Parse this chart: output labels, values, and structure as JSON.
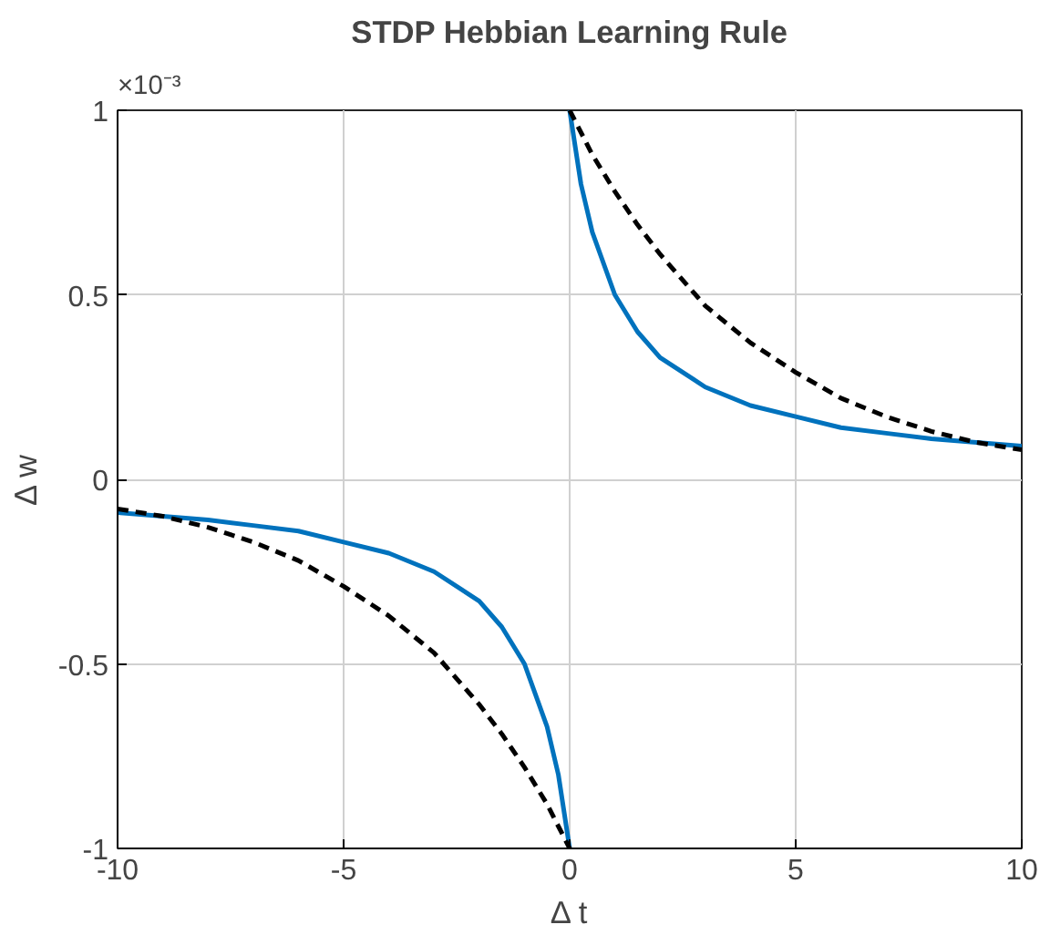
{
  "chart_data": {
    "type": "line",
    "title": "STDP Hebbian Learning Rule",
    "xlabel": "Δ t",
    "ylabel": "Δ w",
    "xlim": [
      -10,
      10
    ],
    "xticks": [
      -10,
      -5,
      0,
      5,
      10
    ],
    "ylim": [
      -1,
      1
    ],
    "yticks": [
      -1,
      -0.5,
      0,
      0.5,
      1
    ],
    "grid": true,
    "annotations": [
      "×10⁻³"
    ],
    "series": [
      {
        "color": "#0072bd",
        "line_style": "solid",
        "x": [
          -10,
          -9,
          -8,
          -7,
          -6,
          -5,
          -4,
          -3,
          -2,
          -1.5,
          -1,
          -0.5,
          -0.25,
          0
        ],
        "values": [
          -0.09,
          -0.1,
          -0.11,
          -0.125,
          -0.14,
          -0.17,
          -0.2,
          -0.25,
          -0.33,
          -0.4,
          -0.5,
          -0.67,
          -0.8,
          -1
        ]
      },
      {
        "color": "#0072bd",
        "line_style": "solid",
        "x": [
          0,
          0.25,
          0.5,
          1,
          1.5,
          2,
          3,
          4,
          5,
          6,
          7,
          8,
          9,
          10
        ],
        "values": [
          1,
          0.8,
          0.67,
          0.5,
          0.4,
          0.33,
          0.25,
          0.2,
          0.17,
          0.14,
          0.125,
          0.11,
          0.1,
          0.09
        ]
      },
      {
        "color": "#000000",
        "line_style": "dashed",
        "x": [
          -10,
          -9,
          -8,
          -7,
          -6,
          -5,
          -4,
          -3,
          -2,
          -1.5,
          -1,
          -0.5,
          0
        ],
        "values": [
          -0.08,
          -0.1,
          -0.13,
          -0.17,
          -0.22,
          -0.29,
          -0.37,
          -0.47,
          -0.61,
          -0.69,
          -0.78,
          -0.88,
          -1
        ]
      },
      {
        "color": "#000000",
        "line_style": "dashed",
        "x": [
          0,
          0.5,
          1,
          1.5,
          2,
          3,
          4,
          5,
          6,
          7,
          8,
          9,
          10
        ],
        "values": [
          1,
          0.88,
          0.78,
          0.69,
          0.61,
          0.47,
          0.37,
          0.29,
          0.22,
          0.17,
          0.13,
          0.1,
          0.08
        ]
      }
    ]
  }
}
